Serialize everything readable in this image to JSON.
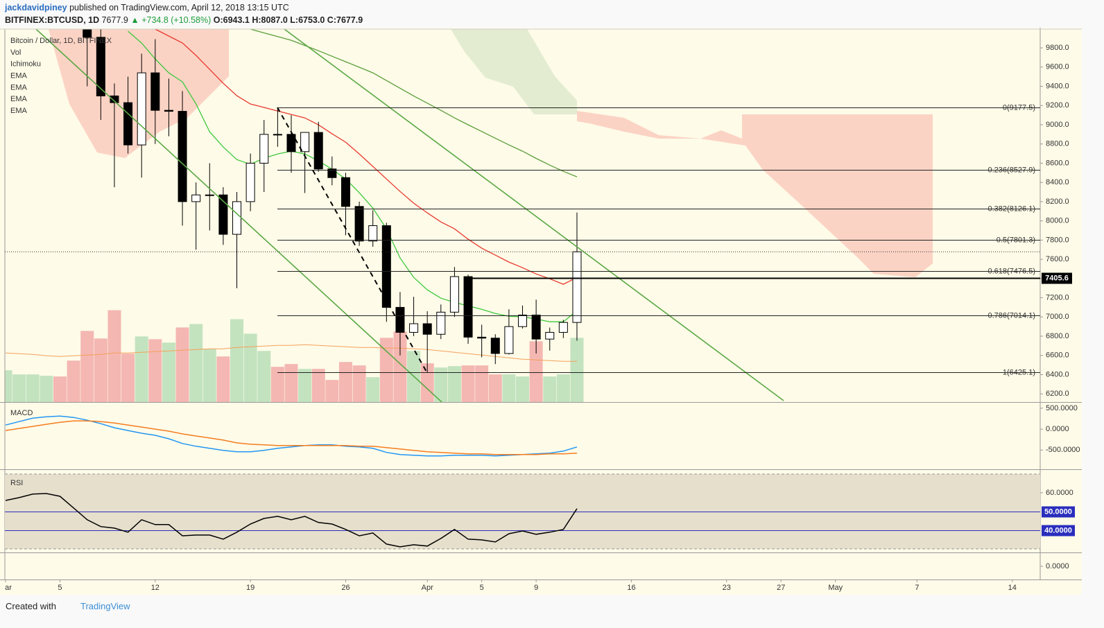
{
  "header": {
    "author": "jackdavidpiney",
    "published": "published on TradingView.com, April 12, 2018 13:15 UTC",
    "symbol": "BITFINEX:BTCUSD, 1D",
    "last": "7677.9",
    "arrow": "▲",
    "change": "+734.8 (+10.58%)",
    "open": "O:6943.1",
    "high": "H:8087.0",
    "low": "L:6753.0",
    "close": "C:7677.9"
  },
  "footer": {
    "created": "Created with",
    "brand": "TradingView"
  },
  "chart_data": [
    {
      "type": "candlestick",
      "title": "Bitcoin / Dollar, 1D, BITFINEX",
      "legend": [
        "Vol",
        "Ichimoku",
        "EMA",
        "EMA",
        "EMA",
        "EMA"
      ],
      "xlim": [
        "2018-02-28",
        "2018-05-16"
      ],
      "xticks": [
        {
          "value": "2018-03-01",
          "label": "ar"
        },
        {
          "value": "2018-03-05",
          "label": "5"
        },
        {
          "value": "2018-03-12",
          "label": "12"
        },
        {
          "value": "2018-03-19",
          "label": "19"
        },
        {
          "value": "2018-03-26",
          "label": "26"
        },
        {
          "value": "2018-04-01",
          "label": "Apr"
        },
        {
          "value": "2018-04-05",
          "label": "5"
        },
        {
          "value": "2018-04-09",
          "label": "9"
        },
        {
          "value": "2018-04-16",
          "label": "16"
        },
        {
          "value": "2018-04-23",
          "label": "23"
        },
        {
          "value": "2018-04-27",
          "label": "27"
        },
        {
          "value": "2018-05-01",
          "label": "May"
        },
        {
          "value": "2018-05-07",
          "label": "7"
        },
        {
          "value": "2018-05-14",
          "label": "14"
        }
      ],
      "ylim": [
        6115,
        9995
      ],
      "yticks": [
        {
          "value": 6200,
          "label": "6200.0"
        },
        {
          "value": 6400,
          "label": "6400.0"
        },
        {
          "value": 6600,
          "label": "6600.0"
        },
        {
          "value": 6800,
          "label": "6800.0"
        },
        {
          "value": 7000,
          "label": "7000.0"
        },
        {
          "value": 7200,
          "label": "7200.0"
        },
        {
          "value": 7400,
          "label": "7400.0"
        },
        {
          "value": 7600,
          "label": "7600.0"
        },
        {
          "value": 7800,
          "label": "7800.0"
        },
        {
          "value": 8000,
          "label": "8000.0"
        },
        {
          "value": 8200,
          "label": "8200.0"
        },
        {
          "value": 8400,
          "label": "8400.0"
        },
        {
          "value": 8600,
          "label": "8600.0"
        },
        {
          "value": 8800,
          "label": "8800.0"
        },
        {
          "value": 9000,
          "label": "9000.0"
        },
        {
          "value": 9200,
          "label": "9200.0"
        },
        {
          "value": 9400,
          "label": "9400.0"
        },
        {
          "value": 9600,
          "label": "9600.0"
        },
        {
          "value": 9800,
          "label": "9800.0"
        }
      ],
      "x": [
        "2018-03-07",
        "2018-03-08",
        "2018-03-09",
        "2018-03-10",
        "2018-03-11",
        "2018-03-12",
        "2018-03-13",
        "2018-03-14",
        "2018-03-15",
        "2018-03-16",
        "2018-03-17",
        "2018-03-18",
        "2018-03-19",
        "2018-03-20",
        "2018-03-21",
        "2018-03-22",
        "2018-03-23",
        "2018-03-24",
        "2018-03-25",
        "2018-03-26",
        "2018-03-27",
        "2018-03-28",
        "2018-03-29",
        "2018-03-30",
        "2018-03-31",
        "2018-04-01",
        "2018-04-02",
        "2018-04-03",
        "2018-04-04",
        "2018-04-05",
        "2018-04-06",
        "2018-04-07",
        "2018-04-08",
        "2018-04-09",
        "2018-04-10",
        "2018-04-11",
        "2018-04-12"
      ],
      "open": [
        10700,
        9910,
        9300,
        9230,
        8790,
        9540,
        9150,
        9140,
        8200,
        8270,
        8270,
        7860,
        8200,
        8600,
        8900,
        8900,
        8720,
        8920,
        8540,
        8450,
        8150,
        7790,
        7950,
        7100,
        6840,
        6930,
        6820,
        7050,
        7420,
        6790,
        6780,
        6620,
        6900,
        7020,
        6770,
        6840,
        6943.1
      ],
      "high": [
        10900,
        10100,
        9430,
        9500,
        9740,
        9890,
        9480,
        9350,
        8400,
        8600,
        8350,
        8300,
        8700,
        9050,
        9177.5,
        9100,
        8920,
        9030,
        8670,
        8500,
        8200,
        8110,
        7980,
        7260,
        7210,
        7060,
        7130,
        7520,
        7440,
        6920,
        6820,
        7080,
        7120,
        7180,
        6890,
        6970,
        8087
      ],
      "low": [
        9400,
        9050,
        8350,
        8700,
        8450,
        8800,
        8880,
        7950,
        7700,
        7900,
        7750,
        7300,
        8100,
        8300,
        8770,
        8500,
        8290,
        8510,
        8370,
        7850,
        7740,
        7730,
        6950,
        6600,
        6800,
        6425.1,
        6770,
        7000,
        6720,
        6580,
        6510,
        6610,
        6880,
        6620,
        6650,
        6780,
        6753
      ],
      "close": [
        9910,
        9300,
        9230,
        8790,
        9540,
        9150,
        9140,
        8200,
        8270,
        8270,
        7860,
        8200,
        8600,
        8900,
        8900,
        8720,
        8920,
        8540,
        8450,
        8150,
        7790,
        7950,
        7100,
        6840,
        6930,
        6820,
        7050,
        7420,
        6790,
        6780,
        6620,
        6900,
        7020,
        6770,
        6840,
        6943.1,
        7677.9
      ],
      "up_color": "#ffffff",
      "down_color": "#000000",
      "series": [
        {
          "color": "#3ec93e",
          "values": [
            null,
            null,
            null,
            9973,
            9850,
            9685,
            9540,
            9446,
            9216,
            8927,
            8768,
            8638,
            8588,
            8653,
            8696,
            8725,
            8696,
            8624,
            8537,
            8436,
            8292,
            8133,
            7917,
            7614,
            7412,
            7282,
            7195,
            7152,
            7116,
            7080,
            7037,
            7008,
            7001,
            6979,
            6950,
            6950,
            7066
          ]
        },
        {
          "color": "#e8392f",
          "values": [
            null,
            null,
            null,
            null,
            null,
            9995,
            9923,
            9851,
            9721,
            9576,
            9432,
            9302,
            9216,
            9180,
            9143,
            9107,
            9071,
            8999,
            8905,
            8819,
            8696,
            8566,
            8436,
            8306,
            8184,
            8083,
            7989,
            7917,
            7809,
            7715,
            7643,
            7571,
            7513,
            7448,
            7397,
            7340,
            7412
          ]
        },
        {
          "color": "#5a9e3a",
          "values": [
            null,
            null,
            null,
            null,
            null,
            null,
            null,
            null,
            null,
            null,
            null,
            null,
            9995,
            9955,
            9917,
            9879,
            9825,
            9770,
            9712,
            9655,
            9598,
            9540,
            9460,
            9380,
            9300,
            9225,
            9150,
            9071,
            9000,
            8930,
            8860,
            8790,
            8725,
            8650,
            8580,
            8515,
            8458
          ]
        }
      ],
      "fib_levels": [
        {
          "value": 9177.5,
          "label": "0(9177.5)"
        },
        {
          "value": 8527.9,
          "label": "0.236(8527.9)"
        },
        {
          "value": 8126.1,
          "label": "0.382(8126.1)"
        },
        {
          "value": 7801.3,
          "label": "0.5(7801.3)"
        },
        {
          "value": 7476.5,
          "label": "0.618(7476.5)"
        },
        {
          "value": 7014.1,
          "label": "0.786(7014.1)"
        },
        {
          "value": 6425.1,
          "label": "1(6425.1)"
        }
      ],
      "last_price": 7677.9,
      "price_line": 7405.6,
      "volume": {
        "lim": [
          0,
          540
        ],
        "x": [
          "2018-03-01",
          "2018-03-02",
          "2018-03-03",
          "2018-03-04",
          "2018-03-05",
          "2018-03-06",
          "2018-03-07",
          "2018-03-08",
          "2018-03-09",
          "2018-03-10",
          "2018-03-11",
          "2018-03-12",
          "2018-03-13",
          "2018-03-14",
          "2018-03-15",
          "2018-03-16",
          "2018-03-17",
          "2018-03-18",
          "2018-03-19",
          "2018-03-20",
          "2018-03-21",
          "2018-03-22",
          "2018-03-23",
          "2018-03-24",
          "2018-03-25",
          "2018-03-26",
          "2018-03-27",
          "2018-03-28",
          "2018-03-29",
          "2018-03-30",
          "2018-03-31",
          "2018-04-01",
          "2018-04-02",
          "2018-04-03",
          "2018-04-04",
          "2018-04-05",
          "2018-04-06",
          "2018-04-07",
          "2018-04-08",
          "2018-04-09",
          "2018-04-10",
          "2018-04-11",
          "2018-04-12"
        ],
        "values": [
          46,
          40,
          40,
          38,
          37,
          60,
          103,
          92,
          133,
          70,
          95,
          91,
          86,
          108,
          113,
          77,
          66,
          120,
          99,
          74,
          51,
          55,
          48,
          48,
          32,
          58,
          53,
          36,
          93,
          102,
          74,
          56,
          50,
          52,
          53,
          53,
          40,
          40,
          37,
          88,
          37,
          40,
          93
        ],
        "colors": [
          "#c3e3bf",
          "#c3e3bf",
          "#c3e3bf",
          "#c3e3bf",
          "#f4b7b2",
          "#f4b7b2",
          "#f4b7b2",
          "#f4b7b2",
          "#f4b7b2",
          "#f4b7b2",
          "#c3e3bf",
          "#f4b7b2",
          "#c3e3bf",
          "#f4b7b2",
          "#c3e3bf",
          "#c3e3bf",
          "#f4b7b2",
          "#c3e3bf",
          "#c3e3bf",
          "#c3e3bf",
          "#f4b7b2",
          "#f4b7b2",
          "#c3e3bf",
          "#f4b7b2",
          "#f4b7b2",
          "#f4b7b2",
          "#f4b7b2",
          "#c3e3bf",
          "#f4b7b2",
          "#f4b7b2",
          "#c3e3bf",
          "#f4b7b2",
          "#c3e3bf",
          "#c3e3bf",
          "#f4b7b2",
          "#f4b7b2",
          "#f4b7b2",
          "#c3e3bf",
          "#c3e3bf",
          "#f4b7b2",
          "#c3e3bf",
          "#c3e3bf",
          "#c3e3bf"
        ],
        "ma_color": "#f5a05a",
        "ma": [
          71,
          70,
          69,
          67,
          66,
          67,
          68,
          69,
          71,
          71,
          72,
          73,
          74,
          75,
          76,
          77,
          77,
          79,
          80,
          81,
          82,
          82,
          83,
          82,
          81,
          80,
          79,
          79,
          78,
          78,
          77,
          76,
          74,
          72,
          70,
          68,
          66,
          64,
          62,
          61,
          60,
          59,
          59
        ]
      }
    },
    {
      "type": "line",
      "title": "MACD",
      "ylim": [
        -943,
        631
      ],
      "yticks": [
        {
          "value": 500,
          "label": "500.0000"
        },
        {
          "value": 0,
          "label": "0.0000"
        },
        {
          "value": -500,
          "label": "-500.0000"
        }
      ],
      "x": [
        "2018-03-01",
        "2018-03-02",
        "2018-03-03",
        "2018-03-04",
        "2018-03-05",
        "2018-03-06",
        "2018-03-07",
        "2018-03-08",
        "2018-03-09",
        "2018-03-10",
        "2018-03-11",
        "2018-03-12",
        "2018-03-13",
        "2018-03-14",
        "2018-03-15",
        "2018-03-16",
        "2018-03-17",
        "2018-03-18",
        "2018-03-19",
        "2018-03-20",
        "2018-03-21",
        "2018-03-22",
        "2018-03-23",
        "2018-03-24",
        "2018-03-25",
        "2018-03-26",
        "2018-03-27",
        "2018-03-28",
        "2018-03-29",
        "2018-03-30",
        "2018-03-31",
        "2018-04-01",
        "2018-04-02",
        "2018-04-03",
        "2018-04-04",
        "2018-04-05",
        "2018-04-06",
        "2018-04-07",
        "2018-04-08",
        "2018-04-09",
        "2018-04-10",
        "2018-04-11",
        "2018-04-12"
      ],
      "series": [
        {
          "color": "#2196f3",
          "values": [
            98,
            180,
            262,
            295,
            311,
            279,
            213,
            131,
            33,
            -33,
            -98,
            -148,
            -230,
            -344,
            -410,
            -459,
            -508,
            -541,
            -541,
            -508,
            -459,
            -426,
            -393,
            -377,
            -377,
            -410,
            -426,
            -459,
            -557,
            -607,
            -623,
            -639,
            -639,
            -623,
            -623,
            -623,
            -639,
            -623,
            -607,
            -590,
            -574,
            -525,
            -426
          ]
        },
        {
          "color": "#f57c1f",
          "values": [
            -33,
            16,
            66,
            115,
            164,
            197,
            197,
            180,
            148,
            98,
            49,
            0,
            -49,
            -115,
            -164,
            -213,
            -262,
            -328,
            -361,
            -377,
            -393,
            -393,
            -393,
            -393,
            -393,
            -393,
            -410,
            -410,
            -443,
            -475,
            -508,
            -541,
            -557,
            -574,
            -590,
            -590,
            -607,
            -607,
            -607,
            -607,
            -590,
            -590,
            -574
          ]
        }
      ]
    },
    {
      "type": "line",
      "title": "RSI",
      "ylim": [
        28.1,
        70.7
      ],
      "band": [
        30,
        70
      ],
      "yticks": [
        {
          "value": 60,
          "label": "60.0000"
        }
      ],
      "levels": [
        {
          "value": 50,
          "label": "50.0000"
        },
        {
          "value": 40,
          "label": "40.0000"
        }
      ],
      "level_color": "#2a2ebd",
      "x": [
        "2018-03-01",
        "2018-03-02",
        "2018-03-03",
        "2018-03-04",
        "2018-03-05",
        "2018-03-06",
        "2018-03-07",
        "2018-03-08",
        "2018-03-09",
        "2018-03-10",
        "2018-03-11",
        "2018-03-12",
        "2018-03-13",
        "2018-03-14",
        "2018-03-15",
        "2018-03-16",
        "2018-03-17",
        "2018-03-18",
        "2018-03-19",
        "2018-03-20",
        "2018-03-21",
        "2018-03-22",
        "2018-03-23",
        "2018-03-24",
        "2018-03-25",
        "2018-03-26",
        "2018-03-27",
        "2018-03-28",
        "2018-03-29",
        "2018-03-30",
        "2018-03-31",
        "2018-04-01",
        "2018-04-02",
        "2018-04-03",
        "2018-04-04",
        "2018-04-05",
        "2018-04-06",
        "2018-04-07",
        "2018-04-08",
        "2018-04-09",
        "2018-04-10",
        "2018-04-11",
        "2018-04-12"
      ],
      "series": [
        {
          "color": "#000000",
          "values": [
            55.9,
            57.4,
            59.3,
            59.6,
            58.1,
            51.9,
            45.6,
            41.9,
            41.1,
            38.9,
            45.6,
            43.0,
            43.0,
            37.0,
            37.4,
            37.4,
            35.2,
            38.9,
            43.3,
            46.3,
            47.4,
            45.6,
            47.4,
            44.1,
            43.3,
            40.4,
            37.0,
            38.5,
            32.6,
            31.1,
            32.2,
            31.5,
            35.6,
            40.4,
            35.2,
            34.8,
            33.7,
            38.1,
            39.6,
            37.8,
            38.9,
            40.4,
            51.5
          ]
        }
      ]
    },
    {
      "type": "line",
      "ylim": [
        -1,
        1
      ],
      "yticks": [
        {
          "value": 0,
          "label": "0.0000"
        }
      ]
    }
  ]
}
